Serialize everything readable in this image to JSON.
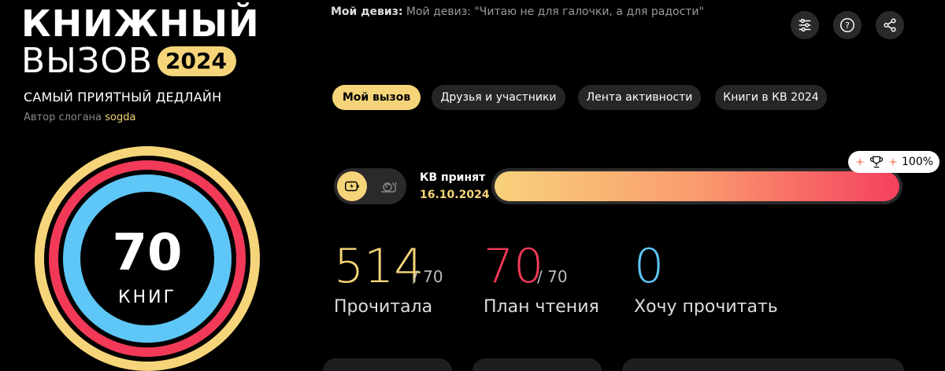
{
  "logo": {
    "line1": "КНИЖНЫЙ",
    "line2": "ВЫЗОВ",
    "year": "2024"
  },
  "slogan": {
    "text": "САМЫЙ ПРИЯТНЫЙ ДЕДЛАЙН",
    "author_prefix": "Автор слогана",
    "author": "sogda"
  },
  "motto": {
    "label": "Мой девиз:",
    "text": "Мой девиз: \"Читаю не для галочки, а для радости\""
  },
  "toolbar": {
    "icons": [
      "settings-sliders-icon",
      "help-icon",
      "share-icon"
    ]
  },
  "tabs": [
    {
      "label": "Мой вызов",
      "active": true
    },
    {
      "label": "Друзья и участники",
      "active": false
    },
    {
      "label": "Лента активности",
      "active": false
    },
    {
      "label": "Книги в КВ 2024",
      "active": false
    }
  ],
  "goal": {
    "count": "70",
    "unit": "КНИГ"
  },
  "challenge": {
    "status": "КВ принят",
    "date": "16.10.2024",
    "progress_percent": 100,
    "progress_label": "100%"
  },
  "stats": [
    {
      "value": "514",
      "of": "/ 70",
      "label": "Прочитала",
      "color": "#f6d57a"
    },
    {
      "value": "70",
      "of": "/ 70",
      "label": "План чтения",
      "color": "#f23a58"
    },
    {
      "value": "0",
      "of": "",
      "label": "Хочу прочитать",
      "color": "#5ec7f7"
    }
  ],
  "colors": {
    "accent": "#f6d57a",
    "red": "#f23a58",
    "blue": "#5ec7f7"
  }
}
